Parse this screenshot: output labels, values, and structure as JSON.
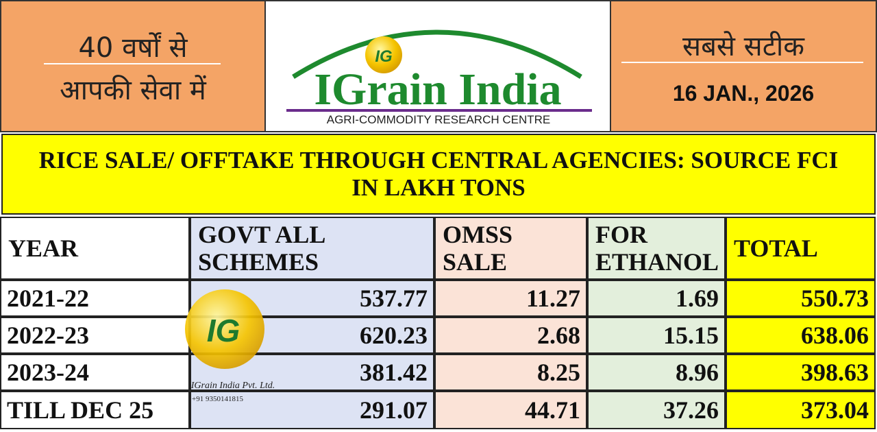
{
  "header": {
    "left_lines": [
      "40 वर्षों से",
      "आपकी सेवा में"
    ],
    "logo_badge": "IG",
    "brand": "IGrain India",
    "tagline": "AGRI-COMMODITY RESEARCH CENTRE",
    "right_title": "सबसे सटीक",
    "date": "16 JAN., 2026"
  },
  "title_lines": [
    "RICE SALE/ OFFTAKE THROUGH CENTRAL AGENCIES: SOURCE FCI",
    "IN LAKH TONS"
  ],
  "table": {
    "headers": [
      [
        "YEAR"
      ],
      [
        "GOVT ALL",
        "SCHEMES"
      ],
      [
        "OMSS",
        "SALE"
      ],
      [
        "FOR",
        "ETHANOL"
      ],
      [
        "TOTAL"
      ]
    ],
    "rows": [
      [
        "2021-22",
        "537.77",
        "11.27",
        "1.69",
        "550.73"
      ],
      [
        "2022-23",
        "620.23",
        "2.68",
        "15.15",
        "638.06"
      ],
      [
        "2023-24",
        "381.42",
        "8.25",
        "8.96",
        "398.63"
      ],
      [
        "TILL DEC 25",
        "291.07",
        "44.71",
        "37.26",
        "373.04"
      ]
    ]
  },
  "watermark": {
    "badge": "IG",
    "company": "IGrain India Pvt. Ltd.",
    "phone": "+91 9350141815"
  }
}
